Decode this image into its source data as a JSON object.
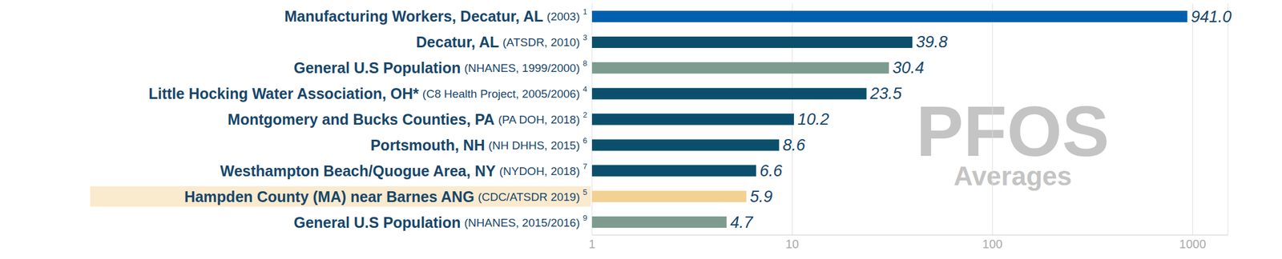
{
  "chart_data": {
    "type": "bar",
    "orientation": "horizontal",
    "log": "x",
    "grid": true,
    "data_labels": true,
    "tick_labels": true,
    "annotations": [
      "PFOS",
      "Averages"
    ],
    "categories": [
      "Manufacturing Workers, Decatur, AL",
      "Decatur, AL",
      "General U.S Population",
      "Little Hocking Water Association, OH*",
      "Montgomery and Bucks Counties, PA",
      "Portsmouth, NH",
      "Westhampton Beach/Quogue Area, NY",
      "Hampden County (MA) near Barnes ANG",
      "General U.S Population"
    ],
    "category_sources": [
      "(2003)",
      "(ATSDR, 2010)",
      "(NHANES, 1999/2000)",
      "(C8 Health Project, 2005/2006)",
      "(PA DOH, 2018)",
      "(NH DHHS, 2015)",
      "(NYDOH, 2018)",
      "(CDC/ATSDR 2019)",
      "(NHANES, 2015/2016)"
    ],
    "footnotes": [
      "1",
      "3",
      "8",
      "4",
      "2",
      "6",
      "7",
      "5",
      "9"
    ],
    "values": [
      941.0,
      39.8,
      30.4,
      23.5,
      10.2,
      8.6,
      6.6,
      5.9,
      4.7
    ],
    "value_labels": [
      "941.0",
      "39.8",
      "30.4",
      "23.5",
      "10.2",
      "8.6",
      "6.6",
      "5.9",
      "4.7"
    ],
    "colors": [
      "#0060ae",
      "#0b4f6c",
      "#7d9c8f",
      "#0b4f6c",
      "#0b4f6c",
      "#0b4f6c",
      "#0b4f6c",
      "#f3d192",
      "#7d9c8f"
    ],
    "xlim": [
      1,
      1500
    ],
    "xticks": [
      1,
      10,
      100,
      1000
    ]
  }
}
